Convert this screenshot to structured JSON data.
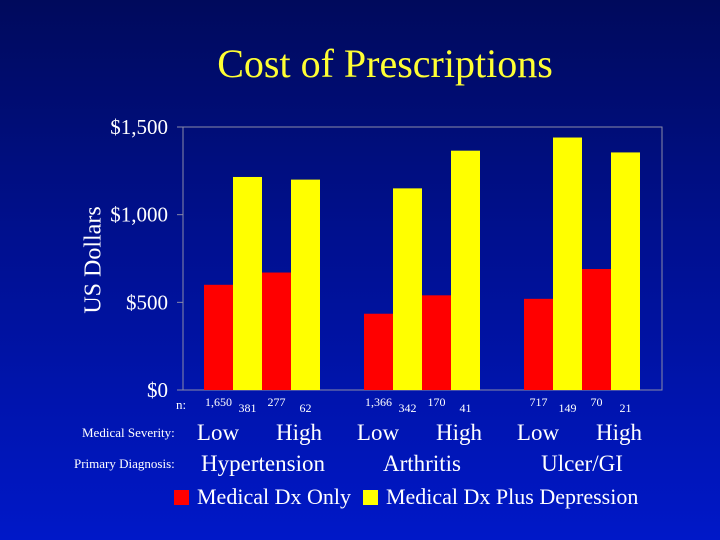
{
  "chart_data": {
    "type": "bar",
    "title": "Cost of Prescriptions",
    "ylabel": "US Dollars",
    "ylim": [
      0,
      1500
    ],
    "yticks": [
      0,
      500,
      1000,
      1500
    ],
    "ytick_labels": [
      "$0",
      "$500",
      "$1,000",
      "$1,500"
    ],
    "categories": [
      "Hypertension Low",
      "Hypertension High",
      "Arthritis Low",
      "Arthritis High",
      "Ulcer/GI Low",
      "Ulcer/GI High"
    ],
    "series": [
      {
        "name": "Medical Dx Only",
        "color": "#ff0000",
        "values": [
          600,
          670,
          435,
          540,
          520,
          690
        ],
        "n_labels": [
          "1,650",
          "277",
          "1,366",
          "170",
          "717",
          "70"
        ]
      },
      {
        "name": "Medical Dx Plus Depression",
        "color": "#ffff00",
        "values": [
          1215,
          1200,
          1150,
          1365,
          1440,
          1355
        ],
        "n_labels": [
          "381",
          "62",
          "342",
          "41",
          "149",
          "21"
        ]
      }
    ],
    "n_row_label": "n:",
    "severity_row_label": "Medical Severity:",
    "diagnosis_row_label": "Primary Diagnosis:",
    "severity_labels": [
      "Low",
      "High",
      "Low",
      "High",
      "Low",
      "High"
    ],
    "diagnosis_labels": [
      "Hypertension",
      "Arthritis",
      "Ulcer/GI"
    ],
    "legend_position": "bottom",
    "grid": false
  }
}
